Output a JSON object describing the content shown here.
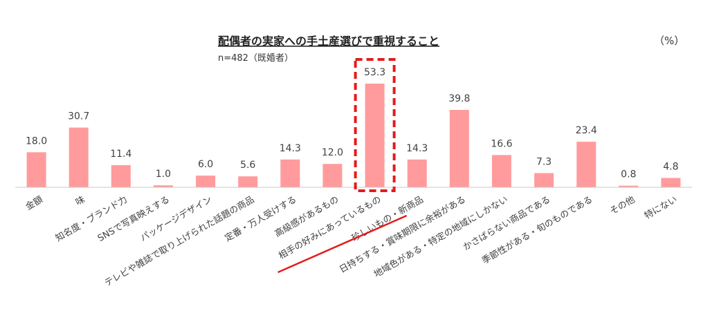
{
  "chart_data": {
    "type": "bar",
    "title": "配偶者の実家への手土産選びで重視すること",
    "subtitle": "n=482（既婚者）",
    "unit": "（%）",
    "categories": [
      "金額",
      "味",
      "知名度・ブランド力",
      "SNSで写真映えする",
      "パッケージデザイン",
      "テレビや雑誌で取り上げられた話題の商品",
      "定番・万人受けする",
      "高級感があるもの",
      "相手の好みにあっているもの",
      "珍しいもの・新商品",
      "日持ちする・賞味期限に余裕がある",
      "地域色がある・特定の地域にしかない",
      "かさばらない商品である",
      "季節性がある・旬のものである",
      "その他",
      "特にない"
    ],
    "values": [
      18.0,
      30.7,
      11.4,
      1.0,
      6.0,
      5.6,
      14.3,
      12.0,
      53.3,
      14.3,
      39.8,
      16.6,
      7.3,
      23.4,
      0.8,
      4.8
    ],
    "value_labels": [
      "18.0",
      "30.7",
      "11.4",
      "1.0",
      "6.0",
      "5.6",
      "14.3",
      "12.0",
      "53.3",
      "14.3",
      "39.8",
      "16.6",
      "7.3",
      "23.4",
      "0.8",
      "4.8"
    ],
    "highlight_category": "相手の好みにあっているもの",
    "ylim": [
      0,
      60
    ],
    "grid": false,
    "colors": {
      "bar": "#ff9b9c",
      "highlight": "#e31b1b",
      "axis": "#c8c8c8"
    }
  }
}
